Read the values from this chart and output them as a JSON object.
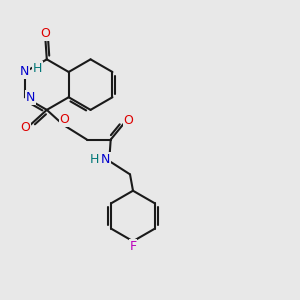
{
  "bg": "#e8e8e8",
  "bc": "#1a1a1a",
  "bw": 1.5,
  "doff": 0.09,
  "col_O": "#dd0000",
  "col_N": "#0000cc",
  "col_F": "#bb00bb",
  "col_H": "#007777",
  "fs": 9.0,
  "xlim": [
    0,
    10
  ],
  "ylim": [
    0,
    10
  ]
}
